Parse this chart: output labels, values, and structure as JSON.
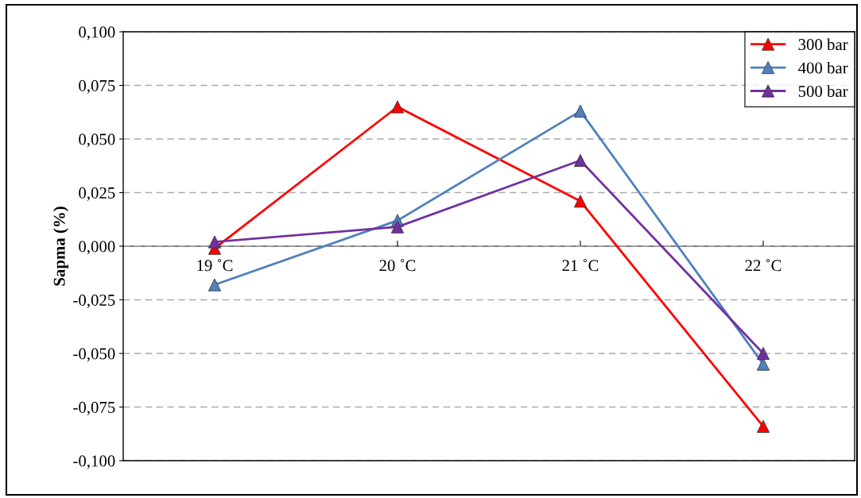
{
  "chart_data": {
    "type": "line",
    "ylabel": "Sapma (%)",
    "categories": [
      "19 ˚C",
      "20 ˚C",
      "21 ˚C",
      "22 ˚C"
    ],
    "series": [
      {
        "name": "300 bar",
        "color": "#ff0000",
        "values": [
          -0.001,
          0.065,
          0.021,
          -0.084
        ]
      },
      {
        "name": "400 bar",
        "color": "#4f81bd",
        "values": [
          -0.018,
          0.012,
          0.063,
          -0.055
        ]
      },
      {
        "name": "500 bar",
        "color": "#7030a0",
        "values": [
          0.002,
          0.009,
          0.04,
          -0.05
        ]
      }
    ],
    "ylim": [
      -0.1,
      0.1
    ],
    "yticks": [
      {
        "value": -0.1,
        "label": "-0,100"
      },
      {
        "value": -0.075,
        "label": "-0,075"
      },
      {
        "value": -0.05,
        "label": "-0,050"
      },
      {
        "value": -0.025,
        "label": "-0,025"
      },
      {
        "value": 0,
        "label": "0,000"
      },
      {
        "value": 0.025,
        "label": "0,025"
      },
      {
        "value": 0.05,
        "label": "0,050"
      },
      {
        "value": 0.075,
        "label": "0,075"
      },
      {
        "value": 0.1,
        "label": "0,100"
      }
    ],
    "grid": "y",
    "legend": "top right",
    "marker": "triangle",
    "line_style": "solid"
  }
}
